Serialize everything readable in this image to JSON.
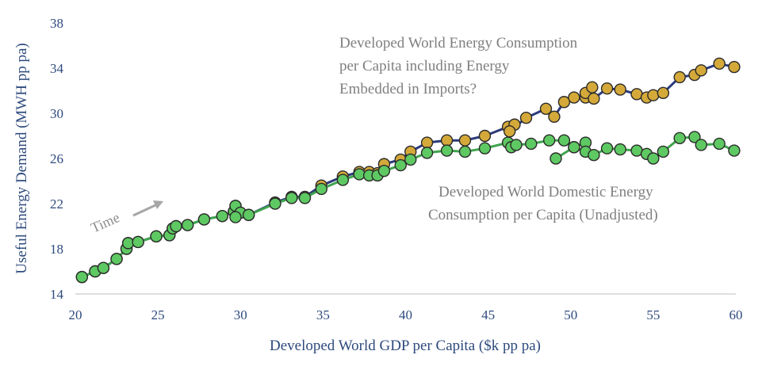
{
  "chart_data": {
    "type": "scatter",
    "xlabel": "Developed World GDP per Capita ($k pp pa)",
    "ylabel": "Useful Energy Demand (MWH pp pa)",
    "xlim": [
      20,
      60
    ],
    "ylim": [
      14,
      38
    ],
    "x_ticks": [
      "20",
      "25",
      "30",
      "35",
      "40",
      "45",
      "50",
      "55",
      "60"
    ],
    "y_ticks": [
      "14",
      "18",
      "22",
      "26",
      "30",
      "34",
      "38"
    ],
    "grid": false,
    "annotations": {
      "imports_label": [
        "Developed World Energy Consumption",
        "per Capita including Energy",
        "Embedded in Imports?"
      ],
      "domestic_label": [
        "Developed World Domestic Energy",
        "Consumption per Capita (Unadjusted)"
      ],
      "time_label": "Time"
    },
    "series": [
      {
        "line_color": "#2b3a7a",
        "marker_color": "#d4a93a",
        "points": [
          [
            20.4,
            15.5
          ],
          [
            21.2,
            16.0
          ],
          [
            21.7,
            16.3
          ],
          [
            22.5,
            17.1
          ],
          [
            23.1,
            18.0
          ],
          [
            23.2,
            18.5
          ],
          [
            23.8,
            18.6
          ],
          [
            24.9,
            19.1
          ],
          [
            25.7,
            19.2
          ],
          [
            25.9,
            19.8
          ],
          [
            26.1,
            20.0
          ],
          [
            26.8,
            20.1
          ],
          [
            27.8,
            20.6
          ],
          [
            28.9,
            20.9
          ],
          [
            29.6,
            21.3
          ],
          [
            29.7,
            21.8
          ],
          [
            30.0,
            21.2
          ],
          [
            30.5,
            21.0
          ],
          [
            32.1,
            22.1
          ],
          [
            33.1,
            22.6
          ],
          [
            33.9,
            22.6
          ],
          [
            34.9,
            23.6
          ],
          [
            36.2,
            24.4
          ],
          [
            37.2,
            24.8
          ],
          [
            37.8,
            24.8
          ],
          [
            38.3,
            24.7
          ],
          [
            38.7,
            25.5
          ],
          [
            39.7,
            25.9
          ],
          [
            40.3,
            26.6
          ],
          [
            41.3,
            27.4
          ],
          [
            42.5,
            27.6
          ],
          [
            43.6,
            27.6
          ],
          [
            44.8,
            28.0
          ],
          [
            46.2,
            28.8
          ],
          [
            46.6,
            29.0
          ],
          [
            46.3,
            28.4
          ],
          [
            47.3,
            29.6
          ],
          [
            48.5,
            30.4
          ],
          [
            49.0,
            29.7
          ],
          [
            49.6,
            31.0
          ],
          [
            50.2,
            31.4
          ],
          [
            50.9,
            31.4
          ],
          [
            50.9,
            31.8
          ],
          [
            51.3,
            32.3
          ],
          [
            51.4,
            31.3
          ],
          [
            52.2,
            32.2
          ],
          [
            53.0,
            32.1
          ],
          [
            54.0,
            31.7
          ],
          [
            54.6,
            31.4
          ],
          [
            55.0,
            31.6
          ],
          [
            55.6,
            31.8
          ],
          [
            56.6,
            33.2
          ],
          [
            57.5,
            33.4
          ],
          [
            57.9,
            33.8
          ],
          [
            59.0,
            34.4
          ],
          [
            59.9,
            34.1
          ]
        ]
      },
      {
        "line_color": "#3fa34d",
        "marker_color": "#5ec962",
        "points": [
          [
            20.4,
            15.5
          ],
          [
            21.2,
            16.0
          ],
          [
            21.7,
            16.3
          ],
          [
            22.5,
            17.1
          ],
          [
            23.1,
            18.0
          ],
          [
            23.2,
            18.5
          ],
          [
            23.8,
            18.6
          ],
          [
            24.9,
            19.1
          ],
          [
            25.7,
            19.2
          ],
          [
            25.9,
            19.8
          ],
          [
            26.1,
            20.0
          ],
          [
            26.8,
            20.1
          ],
          [
            27.8,
            20.6
          ],
          [
            28.9,
            20.9
          ],
          [
            29.6,
            21.3
          ],
          [
            29.7,
            21.8
          ],
          [
            30.0,
            21.2
          ],
          [
            29.7,
            20.8
          ],
          [
            30.5,
            21.0
          ],
          [
            32.1,
            22.0
          ],
          [
            33.1,
            22.5
          ],
          [
            33.9,
            22.5
          ],
          [
            34.9,
            23.3
          ],
          [
            36.2,
            24.1
          ],
          [
            37.2,
            24.6
          ],
          [
            37.8,
            24.5
          ],
          [
            38.3,
            24.5
          ],
          [
            38.7,
            24.9
          ],
          [
            39.7,
            25.4
          ],
          [
            40.3,
            25.9
          ],
          [
            41.3,
            26.5
          ],
          [
            42.5,
            26.7
          ],
          [
            43.6,
            26.6
          ],
          [
            44.8,
            26.9
          ],
          [
            46.2,
            27.4
          ],
          [
            46.4,
            27.0
          ],
          [
            46.7,
            27.2
          ],
          [
            47.6,
            27.3
          ],
          [
            48.7,
            27.6
          ],
          [
            49.6,
            27.6
          ],
          [
            50.2,
            27.0
          ],
          [
            50.9,
            27.4
          ],
          [
            51.3,
            27.8
          ],
          [
            50.9,
            26.6
          ],
          [
            51.4,
            26.3
          ],
          [
            52.2,
            26.9
          ],
          [
            53.0,
            26.8
          ],
          [
            54.0,
            26.7
          ],
          [
            54.6,
            26.4
          ],
          [
            55.0,
            26.0
          ],
          [
            55.6,
            26.6
          ],
          [
            56.6,
            27.8
          ],
          [
            57.5,
            27.9
          ],
          [
            57.9,
            27.2
          ],
          [
            59.0,
            27.3
          ],
          [
            59.9,
            26.7
          ]
        ],
        "points_break_after": 41,
        "tail_points": [
          [
            49.1,
            26.0
          ],
          [
            50.2,
            27.0
          ],
          [
            50.9,
            26.6
          ],
          [
            51.4,
            26.3
          ],
          [
            52.2,
            26.9
          ],
          [
            53.0,
            26.8
          ],
          [
            54.0,
            26.7
          ],
          [
            54.6,
            26.4
          ],
          [
            55.0,
            26.0
          ],
          [
            55.6,
            26.6
          ],
          [
            56.6,
            27.8
          ],
          [
            57.5,
            27.9
          ],
          [
            57.9,
            27.2
          ],
          [
            59.0,
            27.3
          ],
          [
            59.9,
            26.7
          ]
        ]
      }
    ],
    "arrow_color": "#a6a6a6"
  }
}
